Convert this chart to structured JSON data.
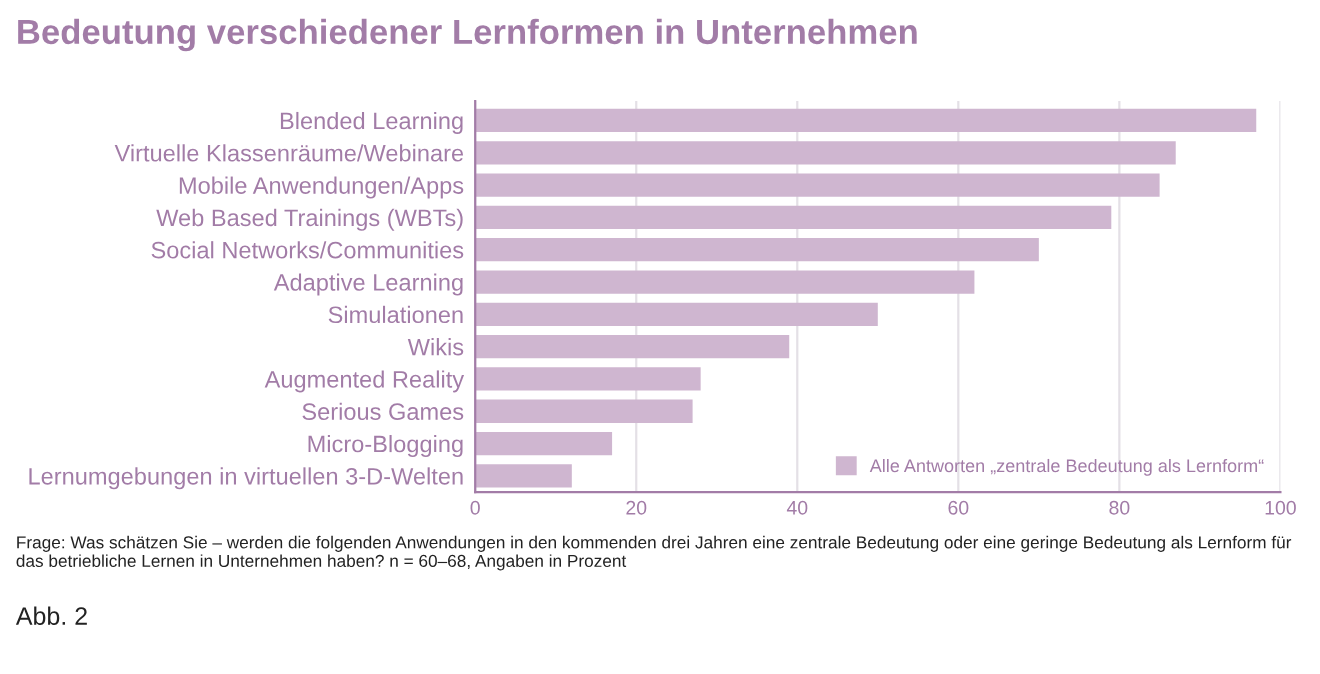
{
  "chart_data": {
    "type": "bar",
    "orientation": "horizontal",
    "title": "Bedeutung verschiedener Lernformen in Unternehmen",
    "categories": [
      "Blended Learning",
      "Virtuelle Klassenräume/Webinare",
      "Mobile Anwendungen/Apps",
      "Web Based Trainings (WBTs)",
      "Social Networks/Communities",
      "Adaptive Learning",
      "Simulationen",
      "Wikis",
      "Augmented Reality",
      "Serious Games",
      "Micro-Blogging",
      "Lernumgebungen in virtuellen 3-D-Welten"
    ],
    "series": [
      {
        "name": "Alle Antworten „zentrale Bedeutung als Lernform“",
        "color": "#cfb6d0",
        "values": [
          97,
          87,
          85,
          79,
          70,
          62,
          50,
          39,
          28,
          27,
          17,
          12
        ]
      }
    ],
    "xlim": [
      0,
      100
    ],
    "xticks": [
      0,
      20,
      40,
      60,
      80,
      100
    ],
    "grid": "x",
    "legend": "bottom right",
    "annotations": [
      "Frage: Was schätzen Sie – werden die folgenden Anwendungen in den kommenden drei Jahren eine zentrale Bedeutung oder eine geringe Bedeutung als Lernform für das betriebliche Lernen in Unternehmen haben? n = 60–68, Angaben in Prozent",
      "Abb. 2"
    ]
  }
}
